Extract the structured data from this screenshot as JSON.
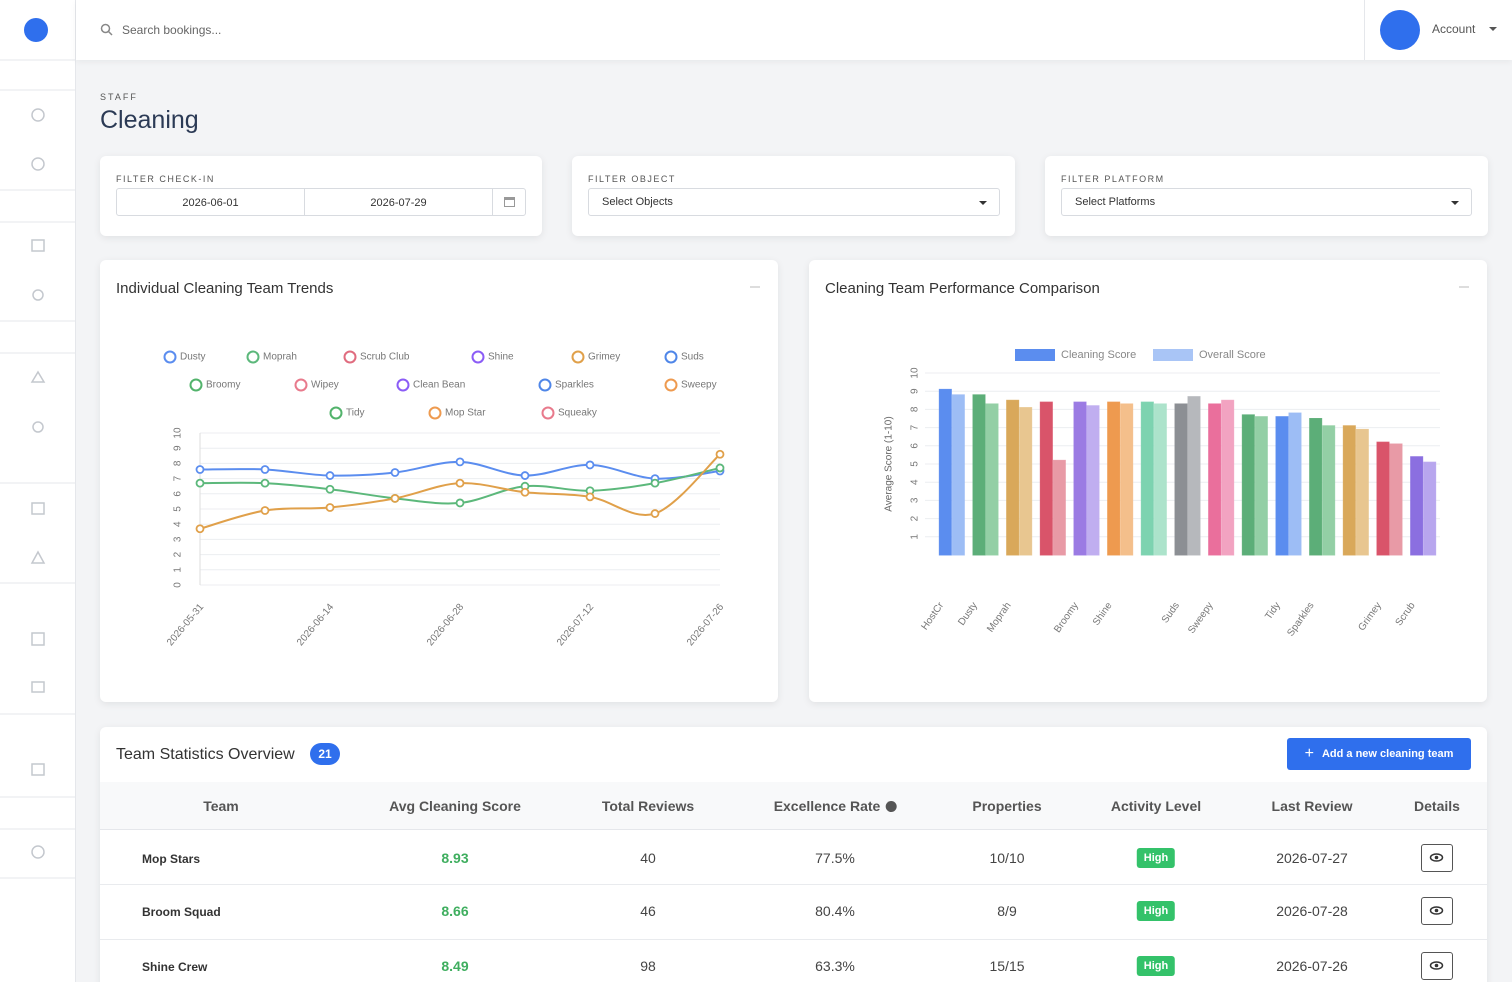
{
  "header": {
    "search_placeholder": "Search bookings...",
    "account": "Account"
  },
  "page": {
    "eyebrow": "STAFF",
    "title": "Cleaning"
  },
  "filters": [
    {
      "label": "FILTER CHECK-IN",
      "from": "2026-06-01",
      "to": "2026-07-29"
    },
    {
      "label": "FILTER OBJECT",
      "placeholder": "Select Objects"
    },
    {
      "label": "FILTER PLATFORM",
      "placeholder": "Select Platforms"
    }
  ],
  "chart_data": [
    {
      "type": "line",
      "title": "Individual Cleaning Team Trends",
      "categories": [
        "2026-05-31",
        null,
        "2026-06-14",
        null,
        "2026-06-28",
        null,
        "2026-07-12",
        null,
        "2026-07-26"
      ],
      "ylim": [
        0,
        10
      ],
      "yticks": [
        0,
        1,
        2,
        3,
        4,
        5,
        6,
        7,
        8,
        9,
        10
      ],
      "grid": true,
      "series": [
        {
          "name": "Dusty",
          "color": "#5b8def",
          "values": [
            7.6,
            7.6,
            7.2,
            7.4,
            8.1,
            7.2,
            7.9,
            7.0,
            7.5
          ]
        },
        {
          "name": "Moprah",
          "color": "#5cb87b",
          "values": [
            6.7,
            6.7,
            6.3,
            5.7,
            5.4,
            6.5,
            6.2,
            6.7,
            7.7
          ]
        },
        {
          "name": "Scrub Club",
          "color": "#e06c7f",
          "values": [
            null,
            null,
            null,
            null,
            null,
            null,
            null,
            null,
            null
          ]
        },
        {
          "name": "Shine",
          "color": "#8b5cf6",
          "values": [
            null,
            null,
            null,
            null,
            null,
            null,
            null,
            null,
            null
          ]
        },
        {
          "name": "Grimey",
          "color": "#e0a04a",
          "values": [
            3.7,
            4.9,
            5.1,
            5.7,
            6.7,
            6.1,
            5.8,
            4.7,
            8.6
          ]
        },
        {
          "name": "Suds",
          "color": "#4f86e8",
          "values": [
            null,
            null,
            null,
            null,
            null,
            null,
            null,
            null,
            null
          ]
        },
        {
          "name": "Broomy",
          "color": "#52b36b",
          "values": [
            null,
            null,
            null,
            null,
            null,
            null,
            null,
            null,
            null
          ]
        },
        {
          "name": "Wipey",
          "color": "#e87a8c",
          "values": [
            null,
            null,
            null,
            null,
            null,
            null,
            null,
            null,
            null
          ]
        },
        {
          "name": "Clean Bean",
          "color": "#8b5cf6",
          "values": [
            null,
            null,
            null,
            null,
            null,
            null,
            null,
            null,
            null
          ]
        },
        {
          "name": "Sparkles",
          "color": "#4f86e8",
          "values": [
            null,
            null,
            null,
            null,
            null,
            null,
            null,
            null,
            null
          ]
        },
        {
          "name": "Sweepy",
          "color": "#ee9a4f",
          "values": [
            null,
            null,
            null,
            null,
            null,
            null,
            null,
            null,
            null
          ]
        },
        {
          "name": "Tidy",
          "color": "#52b36b",
          "values": [
            null,
            null,
            null,
            null,
            null,
            null,
            null,
            null,
            null
          ]
        },
        {
          "name": "Mop Star",
          "color": "#ee9a4f",
          "values": [
            null,
            null,
            null,
            null,
            null,
            null,
            null,
            null,
            null
          ]
        },
        {
          "name": "Squeaky",
          "color": "#e87a8c",
          "values": [
            null,
            null,
            null,
            null,
            null,
            null,
            null,
            null,
            null
          ]
        }
      ]
    },
    {
      "type": "bar",
      "title": "Cleaning Team Performance Comparison",
      "ylabel": "Average Score (1-10)",
      "categories": [
        "HostCr",
        "Dusty",
        "Moprah",
        null,
        "Broomy",
        "Shine",
        null,
        "Suds",
        "Sweepy",
        null,
        "Tidy",
        "Sparkles",
        null,
        "Grimey",
        "Scrub"
      ],
      "ylim": [
        0,
        10
      ],
      "yticks": [
        1,
        2,
        3,
        4,
        5,
        6,
        7,
        8,
        9,
        10
      ],
      "grid": true,
      "series": [
        {
          "name": "Cleaning Score",
          "color": "#5b8def",
          "colors": [
            "#5b8def",
            "#5cae78",
            "#d9a85a",
            "#d9546a",
            "#9b7be3",
            "#ee9a4f",
            "#7dd3b0",
            "#8c8f94",
            "#ea6f9c",
            "#5cae78",
            "#5b8def",
            "#5cae78",
            "#d9a85a",
            "#d9546a",
            "#8b6fe0"
          ],
          "values": [
            9.1,
            8.8,
            8.5,
            8.4,
            8.4,
            8.4,
            8.4,
            8.3,
            8.3,
            7.7,
            7.6,
            7.5,
            7.1,
            6.2,
            5.4
          ]
        },
        {
          "name": "Overall Score",
          "color": "#a9c5f6",
          "colors": [
            "#9dbdf5",
            "#93cfa5",
            "#e8c690",
            "#e89aa6",
            "#c0aef0",
            "#f4bf8b",
            "#ace3cb",
            "#b6b8bc",
            "#f2a3c1",
            "#93cfa5",
            "#9dbdf5",
            "#93cfa5",
            "#e8c690",
            "#e89aa6",
            "#b8a6ee"
          ],
          "values": [
            8.8,
            8.3,
            8.1,
            5.2,
            8.2,
            8.3,
            8.3,
            8.7,
            8.5,
            7.6,
            7.8,
            7.1,
            6.9,
            6.1,
            5.1
          ]
        }
      ]
    }
  ],
  "table": {
    "title": "Team Statistics Overview",
    "count": "21",
    "button": "Add a new cleaning team",
    "columns": [
      "Team",
      "Avg Cleaning Score",
      "Total Reviews",
      "Excellence Rate",
      "Properties",
      "Activity Level",
      "Last Review",
      "Details"
    ],
    "rows": [
      [
        "Mop Stars",
        "8.93",
        "40",
        "77.5%",
        "10/10",
        "High",
        "2026-07-27"
      ],
      [
        "Broom Squad",
        "8.66",
        "46",
        "80.4%",
        "8/9",
        "High",
        "2026-07-28"
      ],
      [
        "Shine Crew",
        "8.49",
        "98",
        "63.3%",
        "15/15",
        "High",
        "2026-07-26"
      ]
    ]
  }
}
